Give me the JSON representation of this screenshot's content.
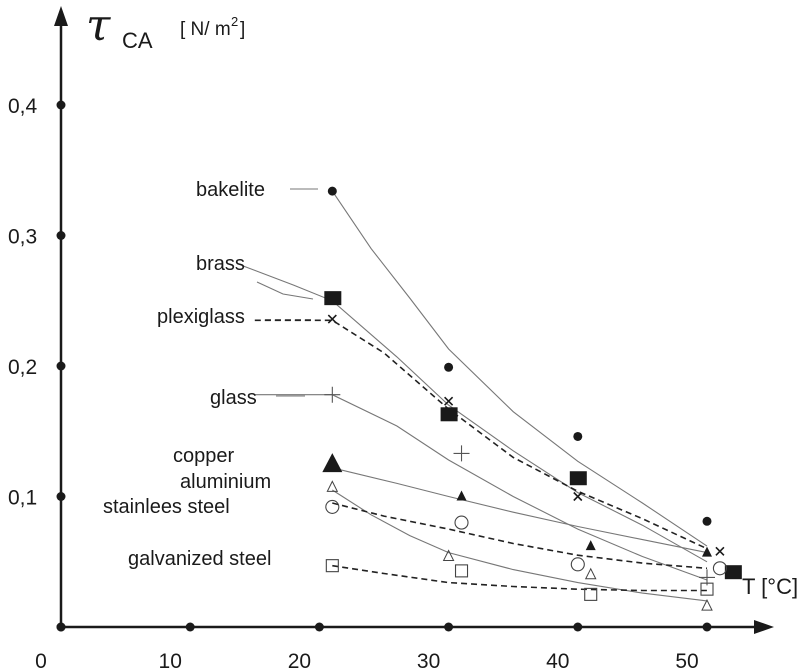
{
  "chart_data": {
    "type": "scatter",
    "title": "",
    "ylabel": {
      "symbol": "τ",
      "subscript": "CA",
      "unit": "[ N/ m",
      "unit_sup": "2",
      "unit_close": "]"
    },
    "xlabel": "T [°C]",
    "xlim": [
      0,
      55
    ],
    "ylim": [
      0,
      0.45
    ],
    "x_ticks": [
      {
        "value": 0,
        "label": "0"
      },
      {
        "value": 10,
        "label": "10"
      },
      {
        "value": 20,
        "label": "20"
      },
      {
        "value": 30,
        "label": "30"
      },
      {
        "value": 40,
        "label": "40"
      },
      {
        "value": 50,
        "label": "50"
      }
    ],
    "y_ticks": [
      {
        "value": 0.1,
        "label": "0,1"
      },
      {
        "value": 0.2,
        "label": "0,2"
      },
      {
        "value": 0.3,
        "label": "0,3"
      },
      {
        "value": 0.4,
        "label": "0,4"
      }
    ],
    "series": [
      {
        "name": "bakelite",
        "marker": "filled-circle",
        "line": "solid",
        "points": [
          [
            21,
            0.334
          ],
          [
            30,
            0.199
          ],
          [
            40,
            0.146
          ],
          [
            50,
            0.081
          ]
        ],
        "fit": [
          [
            21,
            0.334
          ],
          [
            24,
            0.29
          ],
          [
            27,
            0.252
          ],
          [
            30,
            0.213
          ],
          [
            35,
            0.165
          ],
          [
            40,
            0.127
          ],
          [
            45,
            0.095
          ],
          [
            50,
            0.062
          ]
        ]
      },
      {
        "name": "brass",
        "marker": "filled-square",
        "line": "solid",
        "points": [
          [
            21,
            0.252
          ],
          [
            30,
            0.163
          ],
          [
            40,
            0.114
          ],
          [
            52,
            0.042
          ]
        ],
        "fit": [
          [
            14,
            0.277
          ],
          [
            18,
            0.262
          ],
          [
            21,
            0.25
          ],
          [
            26,
            0.207
          ],
          [
            30,
            0.17
          ],
          [
            35,
            0.135
          ],
          [
            40,
            0.103
          ],
          [
            45,
            0.078
          ],
          [
            50,
            0.05
          ]
        ]
      },
      {
        "name": "plexiglass",
        "marker": "cross",
        "line": "dashed",
        "points": [
          [
            21,
            0.236
          ],
          [
            30,
            0.173
          ],
          [
            40,
            0.1
          ],
          [
            51,
            0.058
          ]
        ],
        "fit": [
          [
            15,
            0.235
          ],
          [
            21,
            0.235
          ],
          [
            25,
            0.21
          ],
          [
            30,
            0.167
          ],
          [
            35,
            0.13
          ],
          [
            40,
            0.104
          ],
          [
            45,
            0.083
          ],
          [
            50,
            0.06
          ]
        ]
      },
      {
        "name": "glass",
        "marker": "plus",
        "line": "solid",
        "points": [
          [
            21,
            0.178
          ],
          [
            31,
            0.133
          ],
          [
            50,
            0.038
          ]
        ],
        "fit": [
          [
            15,
            0.178
          ],
          [
            18,
            0.178
          ],
          [
            21,
            0.178
          ],
          [
            26,
            0.154
          ],
          [
            30,
            0.128
          ],
          [
            35,
            0.1
          ],
          [
            40,
            0.075
          ],
          [
            45,
            0.054
          ],
          [
            50,
            0.036
          ]
        ]
      },
      {
        "name": "copper",
        "marker": "filled-triangle",
        "line": "solid",
        "points": [
          [
            21,
            0.124
          ],
          [
            31,
            0.1
          ],
          [
            41,
            0.062
          ],
          [
            50,
            0.057
          ]
        ],
        "fit": [
          [
            21,
            0.122
          ],
          [
            26,
            0.11
          ],
          [
            30,
            0.1
          ],
          [
            35,
            0.088
          ],
          [
            40,
            0.077
          ],
          [
            45,
            0.067
          ],
          [
            50,
            0.057
          ]
        ]
      },
      {
        "name": "aluminium",
        "marker": "open-triangle",
        "line": "solid",
        "points": [
          [
            21,
            0.107
          ],
          [
            30,
            0.054
          ],
          [
            41,
            0.04
          ],
          [
            50,
            0.016
          ]
        ],
        "fit": [
          [
            21,
            0.105
          ],
          [
            24,
            0.086
          ],
          [
            27,
            0.07
          ],
          [
            30,
            0.057
          ],
          [
            35,
            0.044
          ],
          [
            40,
            0.034
          ],
          [
            45,
            0.026
          ],
          [
            50,
            0.02
          ]
        ]
      },
      {
        "name": "stainlees steel",
        "marker": "open-circle",
        "line": "dashed",
        "points": [
          [
            21,
            0.092
          ],
          [
            31,
            0.08
          ],
          [
            40,
            0.048
          ],
          [
            51,
            0.045
          ]
        ],
        "fit": [
          [
            21,
            0.095
          ],
          [
            25,
            0.085
          ],
          [
            30,
            0.075
          ],
          [
            35,
            0.064
          ],
          [
            40,
            0.055
          ],
          [
            45,
            0.049
          ],
          [
            50,
            0.045
          ]
        ]
      },
      {
        "name": "galvanized  steel",
        "marker": "open-square",
        "line": "dashed",
        "points": [
          [
            21,
            0.047
          ],
          [
            31,
            0.043
          ],
          [
            41,
            0.025
          ],
          [
            50,
            0.029
          ]
        ],
        "fit": [
          [
            21,
            0.047
          ],
          [
            25,
            0.041
          ],
          [
            30,
            0.034
          ],
          [
            35,
            0.031
          ],
          [
            40,
            0.029
          ],
          [
            45,
            0.028
          ],
          [
            50,
            0.028
          ]
        ]
      }
    ]
  }
}
